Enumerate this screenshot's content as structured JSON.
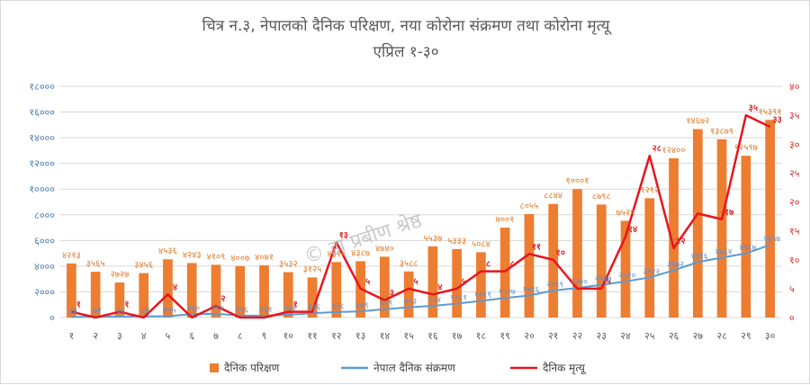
{
  "colors": {
    "bar": "#ed7d31",
    "blue_line": "#5b9bd5",
    "red_line": "#e8151b",
    "grid": "#d9d9d9"
  },
  "chart_data": {
    "type": "bar",
    "title": "चित्र न.३, नेपालको दैनिक परिक्षण, नया कोरोना संक्रमण तथा कोरोना मृत्यू",
    "subtitle": "एप्रिल १-३०",
    "watermark": "© डा प्रबीण श्रेष्ठ",
    "categories": [
      "१",
      "२",
      "३",
      "४",
      "५",
      "६",
      "७",
      "८",
      "९",
      "१०",
      "११",
      "१२",
      "१३",
      "१४",
      "१५",
      "१६",
      "१७",
      "१८",
      "१९",
      "२०",
      "२१",
      "२२",
      "२३",
      "२४",
      "२५",
      "२६",
      "२७",
      "२८",
      "२९",
      "३०"
    ],
    "y_left": {
      "lim": [
        0,
        18000
      ],
      "ticks": [
        "०",
        "२०००",
        "४०००",
        "६०००",
        "८०००",
        "१००००",
        "१२०००",
        "१४०००",
        "१६०००",
        "१८०००"
      ]
    },
    "y_right": {
      "lim": [
        0,
        40
      ],
      "ticks": [
        "०",
        "५",
        "१०",
        "१५",
        "२०",
        "२५",
        "३०",
        "३५",
        "४०"
      ]
    },
    "legend": {
      "position": "bottom"
    },
    "series": [
      {
        "name": "दैनिक परिक्षण",
        "kind": "bar",
        "axis": "left",
        "values": [
          4213,
          3565,
          2727,
          3456,
          4536,
          4243,
          4109,
          4007,
          4071,
          3532,
          3125,
          4320,
          4387,
          4740,
          3588,
          5537,
          5333,
          5084,
          7001,
          8055,
          8844,
          10001,
          8798,
          7529,
          9292,
          12400,
          14672,
          13879,
          12597,
          15391
        ],
        "labels": [
          "४२१३",
          "३५६५",
          "२७२७",
          "३४५६",
          "४५३६",
          "४२४३",
          "४१०९",
          "४००७",
          "४०७१",
          "३५३२",
          "३१२५",
          "४३२०",
          "४३८७",
          "४७४०",
          "३५८८",
          "५५३७",
          "५३३३",
          "५०८४",
          "७००१",
          "८०५५",
          "८८४४",
          "१०००१",
          "८७९८",
          "७५२९",
          "९२९२",
          "१२४००",
          "१४६७२",
          "१३८७९",
          "१२५९७",
          "१५३९१"
        ]
      },
      {
        "name": "नेपाल दैनिक संक्रमण",
        "kind": "line",
        "axis": "left",
        "values": [
          43,
          72,
          78,
          84,
          105,
          260,
          290,
          156,
          131,
          221,
          336,
          428,
          479,
          649,
          793,
          914,
          1081,
          1299,
          1527,
          1716,
          2099,
          2300,
          2547,
          2810,
          3122,
          3672,
          4316,
          4664,
          4987,
          5657
        ],
        "labels": [
          "४३",
          "७२",
          "७८",
          "८४",
          "१०५",
          "२६०",
          "२९०",
          "१५६",
          "१३१",
          "२२१",
          "३३६",
          "४२८",
          "४७९",
          "६४९",
          "७९३",
          "९१४",
          "१०८१",
          "१२९९",
          "१५२७",
          "१७१६",
          "२०९९",
          "२३००",
          "२५४७",
          "२८१०",
          "३१२२",
          "३६७२",
          "४३१६",
          "४६६४",
          "४९८७",
          "५६५७"
        ]
      },
      {
        "name": "दैनिक मृत्यू",
        "kind": "line",
        "axis": "right",
        "values": [
          1,
          0,
          1,
          0,
          4,
          0,
          2,
          0,
          0,
          1,
          1,
          13,
          5,
          3,
          5,
          4,
          5,
          8,
          8,
          11,
          10,
          5,
          5,
          14,
          28,
          12,
          18,
          17,
          35,
          33
        ],
        "labels": [
          "१",
          "",
          "१",
          "",
          "४",
          "",
          "२",
          "",
          "",
          "१",
          "",
          "१३",
          "५",
          "३",
          "५",
          "४",
          "५",
          "८",
          "८",
          "११",
          "१०",
          "",
          "५",
          "१४",
          "२८",
          "१२",
          "",
          "१७",
          "३५",
          "३३"
        ]
      }
    ]
  }
}
